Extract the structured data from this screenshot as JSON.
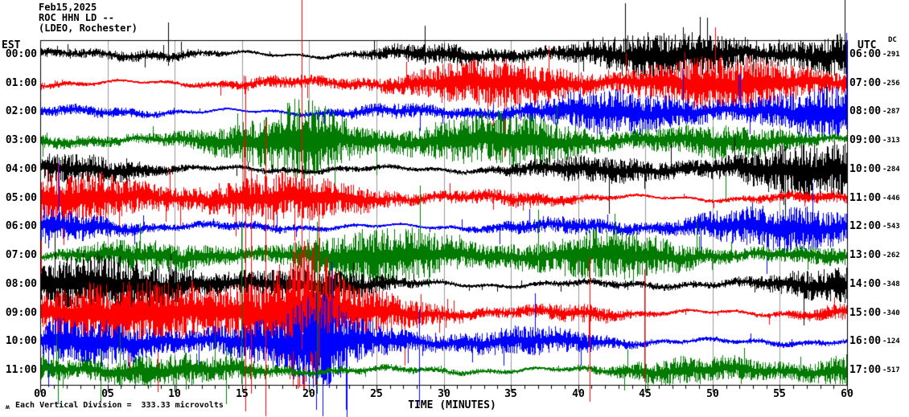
{
  "header": {
    "date": "Feb15,2025",
    "station_line": "ROC HHN LD --",
    "location_line": "(LDEO, Rochester)"
  },
  "axis_titles": {
    "left": "EST",
    "right": "UTC",
    "dc": "DC",
    "x": "TIME (MINUTES)"
  },
  "footer": {
    "scale_icon": "ʍ",
    "scale_note": "Each Vertical Division =  333.33 microvolts"
  },
  "chart_data": {
    "type": "line",
    "subtype": "helicorder-seismogram",
    "title": "ROC HHN LD -- (LDEO, Rochester) Feb15,2025",
    "x_axis": {
      "label": "TIME (MINUTES)",
      "range_minutes": [
        0,
        60
      ],
      "minor_tick_minutes": 1,
      "major_tick_minutes": 5,
      "tick_labels": [
        "00",
        "05",
        "10",
        "15",
        "20",
        "25",
        "30",
        "35",
        "40",
        "45",
        "50",
        "55",
        "60"
      ]
    },
    "grid": true,
    "colors": {
      "background": "#ffffff",
      "grid": "#999999",
      "axis": "#000000",
      "trace_cycle": [
        "#000000",
        "#ff0000",
        "#0000ff",
        "#007a00"
      ]
    },
    "scale_note": "Each Vertical Division = 333.33 microvolts",
    "rows": [
      {
        "est": "00:00",
        "utc": "06:00",
        "dc": "-291",
        "color": "#000000",
        "amp": 28,
        "seed": 11
      },
      {
        "est": "01:00",
        "utc": "07:00",
        "dc": "-256",
        "color": "#ff0000",
        "amp": 28,
        "seed": 22
      },
      {
        "est": "02:00",
        "utc": "08:00",
        "dc": "-287",
        "color": "#0000ff",
        "amp": 26,
        "seed": 33
      },
      {
        "est": "03:00",
        "utc": "09:00",
        "dc": "-313",
        "color": "#007a00",
        "amp": 27,
        "seed": 44
      },
      {
        "est": "04:00",
        "utc": "10:00",
        "dc": "-284",
        "color": "#000000",
        "amp": 28,
        "seed": 55
      },
      {
        "est": "05:00",
        "utc": "11:00",
        "dc": "-446",
        "color": "#ff0000",
        "amp": 28,
        "seed": 66
      },
      {
        "est": "06:00",
        "utc": "12:00",
        "dc": "-543",
        "color": "#0000ff",
        "amp": 26,
        "seed": 77
      },
      {
        "est": "07:00",
        "utc": "13:00",
        "dc": "-262",
        "color": "#007a00",
        "amp": 28,
        "seed": 88
      },
      {
        "est": "08:00",
        "utc": "14:00",
        "dc": "-348",
        "color": "#000000",
        "amp": 30,
        "seed": 99
      },
      {
        "est": "09:00",
        "utc": "15:00",
        "dc": "-340",
        "color": "#ff0000",
        "amp": 32,
        "seed": 110
      },
      {
        "est": "10:00",
        "utc": "16:00",
        "dc": "-124",
        "color": "#0000ff",
        "amp": 27,
        "seed": 121
      },
      {
        "est": "11:00",
        "utc": "17:00",
        "dc": "-517",
        "color": "#007a00",
        "amp": 30,
        "seed": 132
      }
    ],
    "envelope_bumps": [
      {
        "row": 0,
        "minute": 28.5,
        "width": 4.0,
        "gain": 1.35
      },
      {
        "row": 1,
        "minute": 27.0,
        "width": 6.0,
        "gain": 1.3
      },
      {
        "row": 3,
        "minute": 20.4,
        "width": 2.2,
        "gain": 2.1
      },
      {
        "row": 7,
        "minute": 3.0,
        "width": 4.0,
        "gain": 1.3
      },
      {
        "row": 8,
        "minute": 17.0,
        "width": 5.0,
        "gain": 1.5
      },
      {
        "row": 9,
        "minute": 16.2,
        "width": 3.5,
        "gain": 2.3
      },
      {
        "row": 9,
        "minute": 19.8,
        "width": 1.5,
        "gain": 2.0
      },
      {
        "row": 9,
        "minute": 41.0,
        "width": 2.0,
        "gain": 1.5
      },
      {
        "row": 10,
        "minute": 20.8,
        "width": 1.5,
        "gain": 1.8
      },
      {
        "row": 11,
        "minute": 20.0,
        "width": 3.0,
        "gain": 1.5
      }
    ],
    "event_spikes": [
      {
        "row": 9,
        "minute": 15.25,
        "up": 295,
        "down": 122
      },
      {
        "row": 9,
        "minute": 15.65,
        "up": 180,
        "down": 100
      },
      {
        "row": 9,
        "minute": 16.75,
        "up": 240,
        "down": 128
      },
      {
        "row": 9,
        "minute": 19.45,
        "up": 390,
        "down": 45
      },
      {
        "row": 9,
        "minute": 20.7,
        "up": 150,
        "down": 62
      },
      {
        "row": 9,
        "minute": 40.85,
        "up": 70,
        "down": 110
      },
      {
        "row": 9,
        "minute": 44.9,
        "up": 55,
        "down": 85
      },
      {
        "row": 10,
        "minute": 20.5,
        "up": 45,
        "down": 85
      },
      {
        "row": 10,
        "minute": 28.2,
        "up": 40,
        "down": 80
      },
      {
        "row": 7,
        "minute": 14.95,
        "up": 40,
        "down": 160
      },
      {
        "row": 7,
        "minute": 20.6,
        "up": 42,
        "down": 172
      },
      {
        "row": 11,
        "minute": 1.3,
        "up": 28,
        "down": 42
      },
      {
        "row": 11,
        "minute": 4.5,
        "up": 26,
        "down": 40
      },
      {
        "row": 11,
        "minute": 13.8,
        "up": 28,
        "down": 42
      },
      {
        "row": 0,
        "minute": 9.5,
        "up": 40,
        "down": 14
      },
      {
        "row": 0,
        "minute": 28.6,
        "up": 36,
        "down": 13
      },
      {
        "row": 0,
        "minute": 47.8,
        "up": 34,
        "down": 12
      }
    ]
  }
}
